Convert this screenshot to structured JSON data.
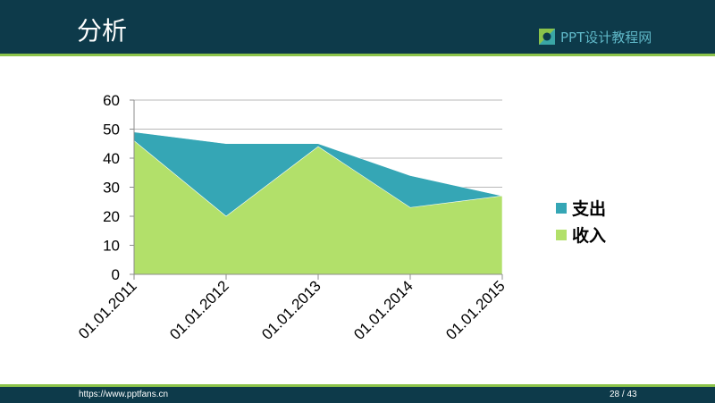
{
  "header": {
    "title": "分析",
    "brand": "PPT设计教程网"
  },
  "footer": {
    "url": "https://www.pptfans.cn",
    "page": "28 / 43"
  },
  "colors": {
    "header_bg": "#0d3a4a",
    "accent_line": "#8bc34a",
    "series_outer": "#35a6b5",
    "series_inner": "#b2e06a",
    "brand_text": "#5fb8c8"
  },
  "chart_data": {
    "type": "area",
    "categories": [
      "01.01.2011",
      "01.01.2012",
      "01.01.2013",
      "01.01.2014",
      "01.01.2015"
    ],
    "series": [
      {
        "name": "支出",
        "values": [
          49,
          45,
          45,
          34,
          27
        ],
        "color": "#35a6b5"
      },
      {
        "name": "收入",
        "values": [
          46,
          20,
          44,
          23,
          27
        ],
        "color": "#b2e06a"
      }
    ],
    "ylim": [
      0,
      60
    ],
    "yticks": [
      "0",
      "10",
      "20",
      "30",
      "40",
      "50",
      "60"
    ],
    "grid": true,
    "legend": "right"
  }
}
